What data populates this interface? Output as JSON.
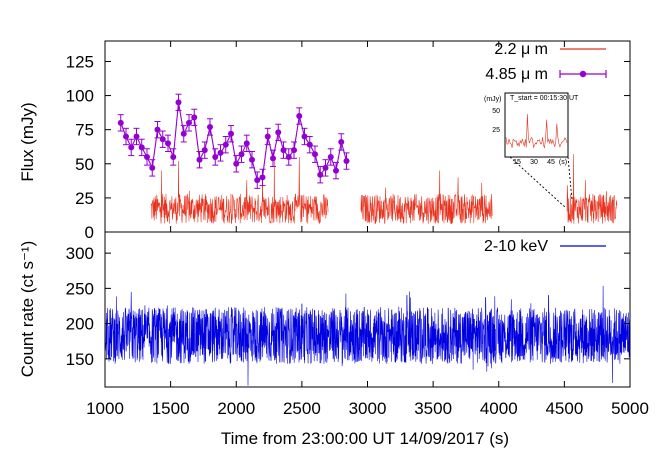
{
  "chart_data": [
    {
      "panel": "top",
      "type": "line",
      "ylabel": "Flux (mJy)",
      "ylim": [
        0,
        140
      ],
      "xlim": [
        1000,
        5000
      ],
      "yticks": [
        "0",
        "25",
        "50",
        "75",
        "100",
        "125"
      ],
      "series": [
        {
          "name": "2.2 μ m",
          "color": "#e8321e",
          "style": "line",
          "segments": [
            [
              1350,
              2700
            ],
            [
              2950,
              3950
            ],
            [
              4520,
              4900
            ]
          ],
          "baseline": 17,
          "typical_range": [
            8,
            30
          ],
          "spikes": [
            [
              1430,
              45
            ],
            [
              1560,
              52
            ],
            [
              2200,
              46
            ],
            [
              2290,
              52
            ],
            [
              2480,
              55
            ],
            [
              3550,
              45
            ],
            [
              3690,
              40
            ],
            [
              3870,
              36
            ],
            [
              4570,
              57
            ],
            [
              4660,
              38
            ],
            [
              4820,
              30
            ]
          ]
        },
        {
          "name": "4.85 μ m",
          "color": "#9400d3",
          "style": "points-with-errorbars",
          "error": 6,
          "x": [
            1120,
            1160,
            1200,
            1240,
            1280,
            1320,
            1360,
            1400,
            1440,
            1480,
            1520,
            1560,
            1600,
            1640,
            1680,
            1720,
            1760,
            1800,
            1840,
            1880,
            1920,
            1960,
            2000,
            2040,
            2080,
            2120,
            2160,
            2200,
            2240,
            2280,
            2320,
            2360,
            2400,
            2440,
            2480,
            2520,
            2560,
            2600,
            2640,
            2680,
            2720,
            2760,
            2800,
            2840
          ],
          "y": [
            80,
            70,
            62,
            70,
            62,
            55,
            47,
            75,
            68,
            65,
            55,
            95,
            72,
            80,
            84,
            53,
            60,
            77,
            55,
            58,
            64,
            72,
            50,
            57,
            65,
            53,
            38,
            40,
            70,
            54,
            73,
            60,
            55,
            60,
            85,
            70,
            64,
            57,
            42,
            47,
            55,
            45,
            66,
            52
          ]
        }
      ],
      "inset": {
        "title": "T_start = 00:15:30 UT",
        "ylabel": "(mJy)",
        "yticks": [
          "25",
          "50"
        ],
        "xticks": [
          "15",
          "30",
          "45"
        ],
        "x_suffix": "(s)"
      }
    },
    {
      "panel": "bottom",
      "type": "line",
      "ylabel": "Count rate (ct s⁻¹)",
      "ylim": [
        110,
        330
      ],
      "xlim": [
        1000,
        5000
      ],
      "yticks": [
        "150",
        "200",
        "250",
        "300"
      ],
      "series": [
        {
          "name": "2-10 keV",
          "color": "#0000e0",
          "style": "line",
          "baseline": 183,
          "typical_range": [
            150,
            220
          ],
          "extremes": [
            [
              1200,
              245
            ],
            [
              2090,
              112
            ],
            [
              3300,
              240
            ],
            [
              3900,
              237
            ],
            [
              4380,
              240
            ],
            [
              2500,
              228
            ]
          ]
        }
      ]
    }
  ],
  "xaxis": {
    "label": "Time from  23:00:00 UT 14/09/2017  (s)",
    "ticks": [
      "1000",
      "1500",
      "2000",
      "2500",
      "3000",
      "3500",
      "4000",
      "4500",
      "5000"
    ]
  }
}
